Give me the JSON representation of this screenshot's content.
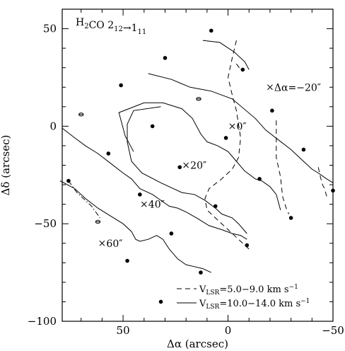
{
  "chart_data": {
    "type": "scatter",
    "title": "H₂CO 2₁₂→1₁₁",
    "xlabel": "Δα (arcsec)",
    "ylabel": "Δδ (arcsec)",
    "xlim": [
      79,
      -50
    ],
    "ylim": [
      -100,
      60
    ],
    "x_ticks": [
      50,
      0,
      -50
    ],
    "y_ticks": [
      50,
      0,
      -50,
      -100
    ],
    "x_tick_labels": [
      "50",
      "0",
      "−50"
    ],
    "y_tick_labels": [
      "50",
      "0",
      "−50",
      "−100"
    ],
    "points_filled": [
      {
        "x": 8,
        "y": 49
      },
      {
        "x": 30,
        "y": 35
      },
      {
        "x": -7,
        "y": 29
      },
      {
        "x": 51,
        "y": 21
      },
      {
        "x": -21,
        "y": 8
      },
      {
        "x": 36,
        "y": 0
      },
      {
        "x": 1,
        "y": -6
      },
      {
        "x": -36,
        "y": -12
      },
      {
        "x": -50,
        "y": -33
      },
      {
        "x": 57,
        "y": -14
      },
      {
        "x": 23,
        "y": -21
      },
      {
        "x": -15,
        "y": -27
      },
      {
        "x": 76,
        "y": -28
      },
      {
        "x": 42,
        "y": -35
      },
      {
        "x": 6,
        "y": -41
      },
      {
        "x": -30,
        "y": -47
      },
      {
        "x": 27,
        "y": -55
      },
      {
        "x": -9,
        "y": -61
      },
      {
        "x": 48,
        "y": -69
      },
      {
        "x": 13,
        "y": -75
      },
      {
        "x": 32,
        "y": -90
      }
    ],
    "points_open": [
      {
        "x": 70,
        "y": 6
      },
      {
        "x": 14,
        "y": 14
      },
      {
        "x": 62,
        "y": -49
      }
    ],
    "markers": [
      {
        "x": -2,
        "y": 0,
        "label": "0″"
      },
      {
        "x": 20,
        "y": -20,
        "label": "20″"
      },
      {
        "x": 40,
        "y": -40,
        "label": "40″"
      },
      {
        "x": 60,
        "y": -60,
        "label": "60″"
      },
      {
        "x": -20,
        "y": 20,
        "label": "Δα=−20″"
      }
    ],
    "series": [
      {
        "name": "V_LSR=5.0−9.0 km s⁻¹",
        "style": "dashed",
        "lines": [
          [
            [
              -4,
              44
            ],
            [
              -2,
              35
            ],
            [
              -1,
              30
            ],
            [
              0,
              25
            ],
            [
              -2,
              16
            ],
            [
              -4,
              8
            ],
            [
              -6,
              -6
            ],
            [
              -5,
              -16
            ],
            [
              -2,
              -22
            ],
            [
              3,
              -27
            ],
            [
              9,
              -32
            ],
            [
              11,
              -37
            ],
            [
              10,
              -43
            ],
            [
              5,
              -48
            ],
            [
              -1,
              -54
            ],
            [
              -5,
              -58
            ],
            [
              -8,
              -61
            ],
            [
              -10,
              -63
            ]
          ],
          [
            [
              -23,
              3
            ],
            [
              -23,
              -4
            ],
            [
              -23,
              -9
            ],
            [
              -23,
              -16
            ],
            [
              -25,
              -26
            ],
            [
              -26,
              -36
            ],
            [
              -28,
              -43
            ],
            [
              -29,
              -45
            ]
          ],
          [
            [
              -43,
              -21
            ],
            [
              -44,
              -26
            ],
            [
              -45,
              -30
            ],
            [
              -46,
              -32
            ],
            [
              -47,
              -36
            ]
          ]
        ]
      },
      {
        "name": "V_LSR=10.0−14.0 km s⁻¹",
        "style": "solid",
        "lines": [
          [
            [
              12,
              44
            ],
            [
              4,
              43
            ],
            [
              -3,
              38
            ],
            [
              -8,
              33
            ],
            [
              -10,
              29
            ]
          ],
          [
            [
              38,
              27
            ],
            [
              27,
              24
            ],
            [
              18,
              20
            ],
            [
              8,
              18
            ],
            [
              -2,
              14
            ],
            [
              -13,
              4
            ],
            [
              -18,
              -2
            ],
            [
              -24,
              -7
            ],
            [
              -30,
              -12
            ],
            [
              -36,
              -18
            ],
            [
              -40,
              -22
            ],
            [
              -43,
              -24
            ],
            [
              -47,
              -27
            ],
            [
              -50,
              -29
            ]
          ],
          [
            [
              32,
              10
            ],
            [
              45,
              8
            ],
            [
              48,
              1
            ],
            [
              48,
              -8
            ],
            [
              46,
              -18
            ],
            [
              41,
              -24
            ],
            [
              32,
              -29
            ],
            [
              22,
              -34
            ],
            [
              16,
              -35
            ],
            [
              11,
              -38
            ],
            [
              6,
              -42
            ],
            [
              3,
              -45
            ],
            [
              -2,
              -47
            ],
            [
              -5,
              -50
            ],
            [
              -9,
              -55
            ]
          ],
          [
            [
              45,
              -13
            ],
            [
              49,
              -5
            ],
            [
              52,
              7
            ],
            [
              40,
              12
            ],
            [
              31,
              12
            ],
            [
              22,
              9
            ],
            [
              17,
              4
            ],
            [
              13,
              -4
            ],
            [
              10,
              -8
            ],
            [
              5,
              -10
            ],
            [
              0,
              -13
            ],
            [
              -4,
              -18
            ],
            [
              -8,
              -23
            ],
            [
              -13,
              -27
            ],
            [
              -16,
              -28
            ],
            [
              -20,
              -31
            ],
            [
              -23,
              -35
            ],
            [
              -24,
              -39
            ],
            [
              -25,
              -43
            ]
          ],
          [
            [
              79,
              -1
            ],
            [
              73,
              -6
            ],
            [
              68,
              -10
            ],
            [
              62,
              -14
            ],
            [
              56,
              -19
            ],
            [
              50,
              -24
            ],
            [
              46,
              -27
            ],
            [
              42,
              -32
            ],
            [
              36,
              -35
            ],
            [
              32,
              -38
            ],
            [
              28,
              -41
            ],
            [
              24,
              -42
            ],
            [
              20,
              -44
            ],
            [
              15,
              -47
            ],
            [
              9,
              -51
            ],
            [
              3,
              -53
            ],
            [
              -2,
              -55
            ],
            [
              -6,
              -56
            ],
            [
              -9,
              -58
            ]
          ],
          [
            [
              80,
              -28
            ],
            [
              73,
              -32
            ],
            [
              68,
              -37
            ],
            [
              62,
              -42
            ],
            [
              56,
              -46
            ],
            [
              50,
              -50
            ],
            [
              46,
              -54
            ],
            [
              44,
              -58
            ],
            [
              42,
              -59
            ],
            [
              38,
              -58
            ],
            [
              34,
              -56
            ],
            [
              31,
              -58
            ],
            [
              28,
              -63
            ],
            [
              24,
              -68
            ],
            [
              20,
              -71
            ],
            [
              16,
              -72
            ],
            [
              12,
              -73
            ],
            [
              8,
              -75
            ]
          ]
        ]
      },
      {
        "name": "",
        "style": "dashdot",
        "lines": [
          [
            [
              76,
              -28
            ],
            [
              72,
              -34
            ],
            [
              65,
              -41
            ],
            [
              61,
              -47
            ]
          ],
          [
            [
              -4,
              32
            ],
            [
              -6,
              29
            ]
          ]
        ]
      }
    ],
    "legend": [
      {
        "style": "dashed",
        "label": "V_LSR=5.0−9.0 km s⁻¹"
      },
      {
        "style": "solid",
        "label": "V_LSR=10.0−14.0 km s⁻¹"
      }
    ],
    "legend_position": "bottom-right",
    "grid": false
  }
}
